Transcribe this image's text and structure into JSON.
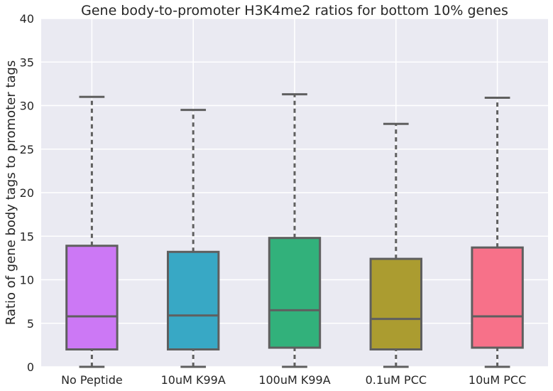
{
  "chart_data": {
    "type": "box",
    "title": "Gene body-to-promoter H3K4me2 ratios for bottom 10% genes",
    "xlabel": "",
    "ylabel": "Ratio of gene body tags to promoter tags",
    "ylim": [
      0,
      40
    ],
    "yticks": [
      0,
      5,
      10,
      15,
      20,
      25,
      30,
      35,
      40
    ],
    "grid": true,
    "categories": [
      "No Peptide",
      "10uM K99A",
      "100uM K99A",
      "0.1uM PCC",
      "10uM PCC"
    ],
    "colors": [
      "#cc78f5",
      "#38a8c5",
      "#32b17b",
      "#ab9c30",
      "#f77189"
    ],
    "boxes": [
      {
        "min": 0,
        "q1": 2.0,
        "median": 5.8,
        "q3": 13.9,
        "max": 31.0
      },
      {
        "min": 0,
        "q1": 2.0,
        "median": 5.9,
        "q3": 13.2,
        "max": 29.5
      },
      {
        "min": 0,
        "q1": 2.2,
        "median": 6.5,
        "q3": 14.8,
        "max": 31.3
      },
      {
        "min": 0,
        "q1": 2.0,
        "median": 5.5,
        "q3": 12.4,
        "max": 27.9
      },
      {
        "min": 0,
        "q1": 2.2,
        "median": 5.8,
        "q3": 13.7,
        "max": 30.9
      }
    ]
  }
}
